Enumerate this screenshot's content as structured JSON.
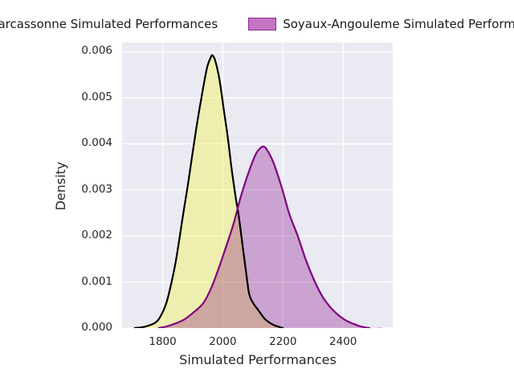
{
  "figure": {
    "xlabel": "Simulated Performances",
    "ylabel": "Density"
  },
  "legend": {
    "items": [
      {
        "label": "Carcassonne Simulated Performances",
        "swatch_fill": "#f1f1a5",
        "swatch_border": "#000000"
      },
      {
        "label": "Soyaux-Angouleme Simulated Performances",
        "swatch_fill": "#c573c5",
        "swatch_border": "#8b2d8b"
      }
    ]
  },
  "chart_data": {
    "type": "area",
    "title": "",
    "subtitle": "",
    "xlabel": "Simulated Performances",
    "ylabel": "Density",
    "xlim": [
      1665,
      2565
    ],
    "ylim": [
      0,
      0.0062
    ],
    "x_ticks": [
      1800,
      2000,
      2200,
      2400
    ],
    "y_tick_values": [
      0,
      0.001,
      0.002,
      0.003,
      0.004,
      0.005,
      0.006
    ],
    "y_tick_labels": [
      "0.000",
      "0.001",
      "0.002",
      "0.003",
      "0.004",
      "0.005",
      "0.006"
    ],
    "grid": true,
    "background": "#eaeaf2",
    "gridline_color": "#ffffff",
    "legend_position": "top",
    "series": [
      {
        "name": "Carcassonne Simulated Performances",
        "line_color": "#000000",
        "fill_color": "#f5f542",
        "fill_opacity": 0.38,
        "fill_extend": [
          1668,
          null
        ],
        "peak": {
          "x": 1966,
          "density": 0.00592
        },
        "points": [
          [
            1707,
            0
          ],
          [
            1741,
            3e-05
          ],
          [
            1776,
            0.00012
          ],
          [
            1795,
            0.00028
          ],
          [
            1813,
            0.00056
          ],
          [
            1829,
            0.00098
          ],
          [
            1843,
            0.00143
          ],
          [
            1856,
            0.00195
          ],
          [
            1869,
            0.00251
          ],
          [
            1883,
            0.00307
          ],
          [
            1896,
            0.00365
          ],
          [
            1909,
            0.00422
          ],
          [
            1923,
            0.00478
          ],
          [
            1936,
            0.00527
          ],
          [
            1949,
            0.00569
          ],
          [
            1960,
            0.00588
          ],
          [
            1966,
            0.00592
          ],
          [
            1975,
            0.0058
          ],
          [
            1989,
            0.00539
          ],
          [
            2003,
            0.00475
          ],
          [
            2016,
            0.00417
          ],
          [
            2029,
            0.00347
          ],
          [
            2043,
            0.00283
          ],
          [
            2053,
            0.00243
          ],
          [
            2067,
            0.00173
          ],
          [
            2080,
            0.00108
          ],
          [
            2088,
            0.00073
          ],
          [
            2101,
            0.00054
          ],
          [
            2120,
            0.00037
          ],
          [
            2141,
            0.00019
          ],
          [
            2168,
            7e-05
          ],
          [
            2195,
            1e-05
          ],
          [
            2200,
            0
          ]
        ]
      },
      {
        "name": "Soyaux-Angouleme Simulated Performances",
        "line_color": "#800080",
        "fill_color": "#800080",
        "fill_opacity": 0.3,
        "fill_extend": [
          null,
          2530
        ],
        "peak": {
          "x": 2135,
          "density": 0.00394
        },
        "points": [
          [
            1787,
            0
          ],
          [
            1810,
            3e-05
          ],
          [
            1830,
            7e-05
          ],
          [
            1870,
            0.00018
          ],
          [
            1910,
            0.00038
          ],
          [
            1936,
            0.00055
          ],
          [
            1960,
            0.00085
          ],
          [
            1981,
            0.0012
          ],
          [
            2008,
            0.00171
          ],
          [
            2035,
            0.00225
          ],
          [
            2061,
            0.00288
          ],
          [
            2088,
            0.00342
          ],
          [
            2110,
            0.00378
          ],
          [
            2125,
            0.00391
          ],
          [
            2135,
            0.00394
          ],
          [
            2145,
            0.00389
          ],
          [
            2168,
            0.0036
          ],
          [
            2195,
            0.00307
          ],
          [
            2221,
            0.00248
          ],
          [
            2248,
            0.00202
          ],
          [
            2275,
            0.0015
          ],
          [
            2301,
            0.00108
          ],
          [
            2328,
            0.00072
          ],
          [
            2355,
            0.00047
          ],
          [
            2381,
            0.0003
          ],
          [
            2408,
            0.00017
          ],
          [
            2435,
            9e-05
          ],
          [
            2461,
            3e-05
          ],
          [
            2488,
            0
          ]
        ]
      }
    ]
  }
}
